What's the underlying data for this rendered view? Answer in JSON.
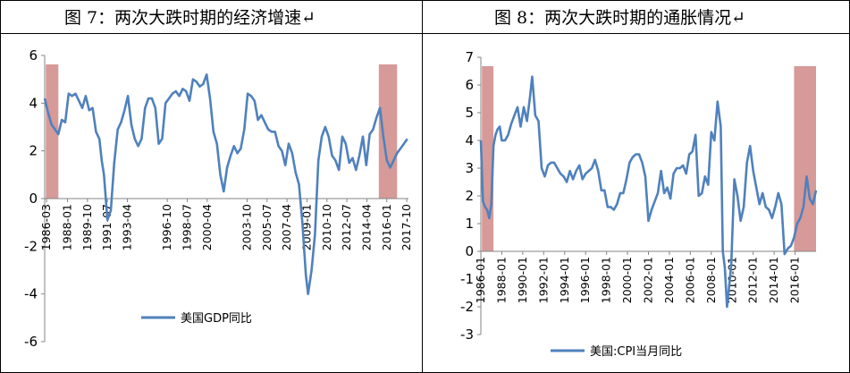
{
  "chart_data": [
    {
      "type": "line",
      "title": "图 7：两次大跌时期的经济增速↵",
      "xlabel": "",
      "ylabel": "",
      "ylim": [
        -6,
        6
      ],
      "yticks": [
        -6,
        -4,
        -2,
        0,
        2,
        4,
        6
      ],
      "xlim": [
        1986.0,
        2017.9
      ],
      "xticks": [
        "1986-03",
        "1988-01",
        "1989-10",
        "1991-07",
        "1993-04",
        "1996-10",
        "1998-07",
        "2000-04",
        "2003-10",
        "2005-07",
        "2007-04",
        "2009-01",
        "2010-10",
        "2012-07",
        "2014-04",
        "2016-01",
        "2017-10"
      ],
      "shaded_ranges": [
        [
          1986.1,
          1987.2
        ],
        [
          2015.3,
          2016.9
        ]
      ],
      "shade_color": "#d69a98",
      "line_color": "#4f81bd",
      "legend_position": "bottom-center",
      "series": [
        {
          "name": "美国GDP同比",
          "x": [
            1986.0,
            1986.3,
            1986.6,
            1986.9,
            1987.2,
            1987.5,
            1987.8,
            1988.1,
            1988.4,
            1988.7,
            1989.0,
            1989.3,
            1989.6,
            1989.9,
            1990.2,
            1990.5,
            1990.8,
            1991.0,
            1991.2,
            1991.5,
            1991.8,
            1992.1,
            1992.4,
            1992.7,
            1993.0,
            1993.3,
            1993.6,
            1993.9,
            1994.2,
            1994.5,
            1994.8,
            1995.1,
            1995.4,
            1995.7,
            1996.0,
            1996.3,
            1996.6,
            1996.9,
            1997.2,
            1997.5,
            1997.8,
            1998.1,
            1998.4,
            1998.7,
            1999.0,
            1999.3,
            1999.6,
            1999.9,
            2000.2,
            2000.5,
            2000.8,
            2001.1,
            2001.4,
            2001.7,
            2002.0,
            2002.3,
            2002.6,
            2002.9,
            2003.2,
            2003.5,
            2003.8,
            2004.1,
            2004.4,
            2004.7,
            2005.0,
            2005.3,
            2005.6,
            2005.9,
            2006.2,
            2006.5,
            2006.8,
            2007.1,
            2007.4,
            2007.7,
            2008.0,
            2008.3,
            2008.6,
            2008.9,
            2009.1,
            2009.4,
            2009.7,
            2010.0,
            2010.3,
            2010.6,
            2010.9,
            2011.2,
            2011.5,
            2011.8,
            2012.1,
            2012.4,
            2012.7,
            2013.0,
            2013.3,
            2013.6,
            2013.9,
            2014.2,
            2014.5,
            2014.8,
            2015.1,
            2015.4,
            2015.7,
            2016.0,
            2016.3,
            2016.6,
            2016.9,
            2017.2,
            2017.5,
            2017.8
          ],
          "values": [
            4.2,
            3.6,
            3.1,
            2.9,
            2.7,
            3.3,
            3.2,
            4.4,
            4.3,
            4.4,
            4.1,
            3.8,
            4.3,
            3.7,
            3.8,
            2.8,
            2.5,
            1.6,
            1.0,
            -0.9,
            -0.5,
            1.5,
            2.9,
            3.2,
            3.7,
            4.3,
            3.1,
            2.5,
            2.2,
            2.5,
            3.8,
            4.2,
            4.2,
            3.8,
            2.3,
            2.5,
            4.0,
            4.2,
            4.4,
            4.5,
            4.3,
            4.6,
            4.5,
            4.1,
            5.0,
            4.9,
            4.7,
            4.8,
            5.2,
            4.2,
            2.8,
            2.3,
            1.0,
            0.3,
            1.3,
            1.8,
            2.2,
            1.9,
            2.1,
            2.9,
            4.4,
            4.3,
            4.1,
            3.3,
            3.5,
            3.2,
            2.9,
            2.8,
            2.8,
            2.2,
            2.0,
            1.4,
            2.3,
            1.9,
            1.1,
            0.6,
            -1.0,
            -3.2,
            -4.0,
            -3.0,
            -1.5,
            1.6,
            2.6,
            3.0,
            2.6,
            1.8,
            1.6,
            1.2,
            2.6,
            2.3,
            1.5,
            1.7,
            1.2,
            1.8,
            2.6,
            1.4,
            2.7,
            2.9,
            3.4,
            3.8,
            2.6,
            1.6,
            1.3,
            1.6,
            1.9,
            2.1,
            2.3,
            2.5
          ]
        }
      ]
    },
    {
      "type": "line",
      "title": "图 8：两次大跌时期的通胀情况↵",
      "xlabel": "",
      "ylabel": "",
      "ylim": [
        -3,
        7
      ],
      "yticks": [
        -3,
        -2,
        -1,
        0,
        1,
        2,
        3,
        4,
        5,
        6,
        7
      ],
      "xlim": [
        1986.0,
        2018.0
      ],
      "xticks": [
        "1986-01",
        "1988-01",
        "1990-01",
        "1992-01",
        "1994-01",
        "1996-01",
        "1998-01",
        "2000-01",
        "2002-01",
        "2004-01",
        "2006-01",
        "2008-01",
        "2010-01",
        "2012-01",
        "2014-01",
        "2016-01"
      ],
      "shaded_ranges": [
        [
          1986.1,
          1987.2
        ],
        [
          2015.9,
          2018.0
        ]
      ],
      "shade_color": "#d69a98",
      "line_color": "#4f81bd",
      "legend_position": "bottom-center",
      "series": [
        {
          "name": "美国:CPI当月同比",
          "x": [
            1986.0,
            1986.2,
            1986.4,
            1986.6,
            1986.8,
            1987.0,
            1987.2,
            1987.4,
            1987.6,
            1987.8,
            1988.0,
            1988.3,
            1988.6,
            1988.9,
            1989.2,
            1989.5,
            1989.8,
            1990.1,
            1990.4,
            1990.7,
            1990.9,
            1991.2,
            1991.5,
            1991.8,
            1992.1,
            1992.4,
            1992.7,
            1993.0,
            1993.3,
            1993.6,
            1993.9,
            1994.2,
            1994.5,
            1994.8,
            1995.1,
            1995.4,
            1995.7,
            1996.0,
            1996.3,
            1996.6,
            1996.9,
            1997.2,
            1997.5,
            1997.8,
            1998.1,
            1998.4,
            1998.7,
            1999.0,
            1999.3,
            1999.6,
            1999.9,
            2000.2,
            2000.5,
            2000.8,
            2001.1,
            2001.4,
            2001.7,
            2002.0,
            2002.3,
            2002.6,
            2002.9,
            2003.2,
            2003.5,
            2003.8,
            2004.1,
            2004.4,
            2004.7,
            2005.0,
            2005.3,
            2005.6,
            2005.9,
            2006.2,
            2006.5,
            2006.8,
            2007.1,
            2007.4,
            2007.7,
            2008.0,
            2008.3,
            2008.6,
            2008.9,
            2009.1,
            2009.3,
            2009.5,
            2009.7,
            2009.9,
            2010.2,
            2010.5,
            2010.8,
            2011.1,
            2011.4,
            2011.7,
            2012.0,
            2012.3,
            2012.6,
            2012.9,
            2013.2,
            2013.5,
            2013.8,
            2014.1,
            2014.4,
            2014.7,
            2015.0,
            2015.3,
            2015.6,
            2015.9,
            2016.2,
            2016.5,
            2016.8,
            2017.1,
            2017.4,
            2017.7,
            2018.0
          ],
          "values": [
            4.0,
            1.8,
            1.6,
            1.5,
            1.2,
            1.7,
            3.8,
            4.2,
            4.4,
            4.5,
            4.0,
            4.0,
            4.2,
            4.6,
            4.9,
            5.2,
            4.5,
            5.2,
            4.7,
            5.6,
            6.3,
            4.9,
            4.7,
            3.0,
            2.7,
            3.1,
            3.2,
            3.2,
            3.0,
            2.8,
            2.7,
            2.5,
            2.9,
            2.6,
            2.9,
            3.1,
            2.6,
            2.8,
            2.9,
            3.0,
            3.3,
            2.9,
            2.2,
            2.2,
            1.6,
            1.6,
            1.5,
            1.7,
            2.1,
            2.1,
            2.6,
            3.2,
            3.4,
            3.5,
            3.5,
            3.2,
            2.7,
            1.1,
            1.5,
            1.8,
            2.1,
            2.9,
            2.1,
            2.3,
            1.9,
            2.8,
            3.0,
            3.0,
            3.1,
            2.8,
            3.5,
            3.6,
            4.2,
            2.0,
            2.1,
            2.7,
            2.4,
            4.3,
            4.0,
            5.4,
            4.5,
            0.0,
            -0.6,
            -2.0,
            -1.3,
            -0.5,
            2.6,
            2.0,
            1.1,
            1.6,
            3.2,
            3.8,
            2.9,
            2.3,
            1.7,
            2.1,
            1.6,
            1.5,
            1.2,
            1.6,
            2.1,
            1.7,
            -0.1,
            0.1,
            0.2,
            0.5,
            1.0,
            1.2,
            1.6,
            2.7,
            1.9,
            1.7,
            2.2
          ]
        }
      ]
    }
  ]
}
